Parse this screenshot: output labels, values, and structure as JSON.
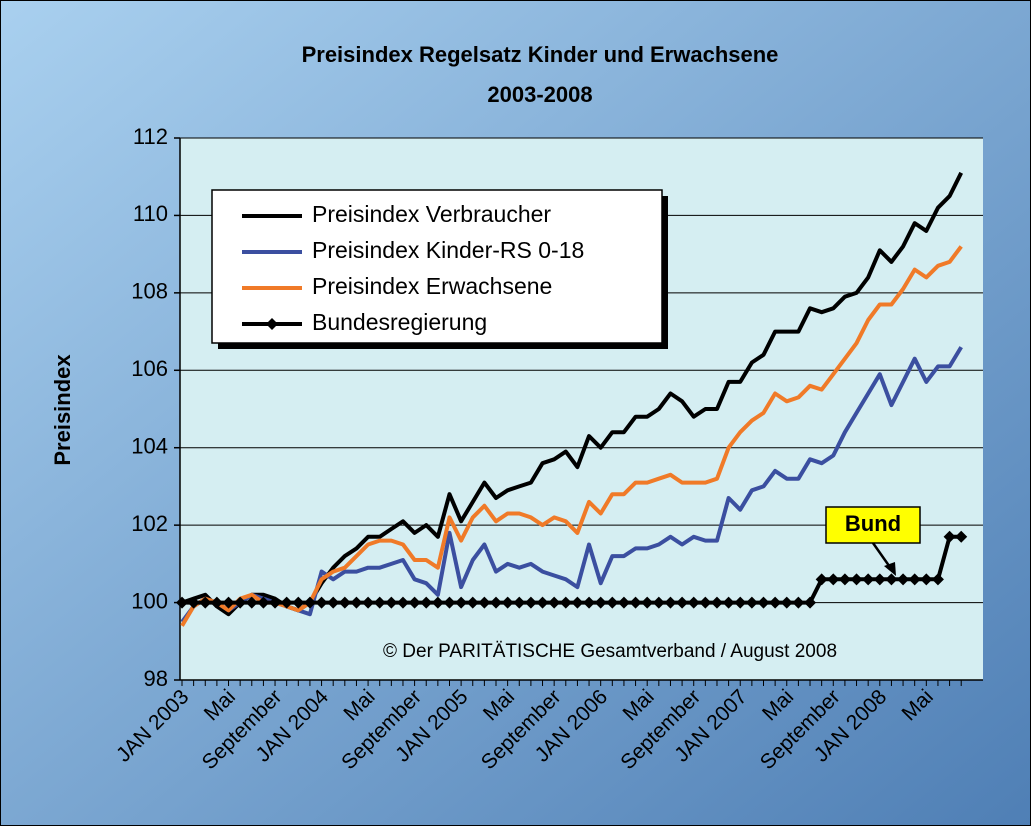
{
  "chart_data": {
    "type": "line",
    "title": "Preisindex Regelsatz Kinder und Erwachsene",
    "subtitle": "2003-2008",
    "y_label": "Preisindex",
    "annotations": [
      "©  Der PARITÄTISCHE Gesamtverband / August 2008",
      "Bund"
    ],
    "legend": "upper-left",
    "grid": true,
    "ylim": [
      98,
      112
    ],
    "yticks": [
      98,
      100,
      102,
      104,
      106,
      108,
      110,
      112
    ],
    "categories": [
      "JAN 2003",
      null,
      null,
      null,
      "Mai",
      null,
      null,
      null,
      "September",
      null,
      null,
      null,
      "JAN 2004",
      null,
      null,
      null,
      "Mai",
      null,
      null,
      null,
      "September",
      null,
      null,
      null,
      "JAN 2005",
      null,
      null,
      null,
      "Mai",
      null,
      null,
      null,
      "September",
      null,
      null,
      null,
      "JAN 2006",
      null,
      null,
      null,
      "Mai",
      null,
      null,
      null,
      "September",
      null,
      null,
      null,
      "JAN 2007",
      null,
      null,
      null,
      "Mai",
      null,
      null,
      null,
      "September",
      null,
      null,
      null,
      "JAN 2008",
      null,
      null,
      null,
      "Mai",
      null,
      null,
      null
    ],
    "series": [
      {
        "name": "Preisindex Verbraucher",
        "color": "#000000",
        "marker": false,
        "values": [
          100,
          100.1,
          100.2,
          99.9,
          99.7,
          100,
          100.2,
          100.2,
          100.1,
          99.9,
          99.8,
          100.0,
          100.5,
          100.9,
          101.2,
          101.4,
          101.7,
          101.7,
          101.9,
          102.1,
          101.8,
          102.0,
          101.7,
          102.8,
          102.1,
          102.6,
          103.1,
          102.7,
          102.9,
          103.0,
          103.1,
          103.6,
          103.7,
          103.9,
          103.5,
          104.3,
          104.0,
          104.4,
          104.4,
          104.8,
          104.8,
          105.0,
          105.4,
          105.2,
          104.8,
          105.0,
          105.0,
          105.7,
          105.7,
          106.2,
          106.4,
          107.0,
          107.0,
          107.0,
          107.6,
          107.5,
          107.6,
          107.9,
          108.0,
          108.4,
          109.1,
          108.8,
          109.2,
          109.8,
          109.6,
          110.2,
          110.5,
          111.1
        ]
      },
      {
        "name": "Preisindex Kinder-RS 0-18",
        "color": "#3b4fa0",
        "marker": false,
        "values": [
          99.5,
          99.9,
          100.1,
          100.0,
          99.8,
          100.0,
          100.2,
          100.1,
          100.0,
          99.9,
          99.8,
          99.7,
          100.8,
          100.6,
          100.8,
          100.8,
          100.9,
          100.9,
          101.0,
          101.1,
          100.6,
          100.5,
          100.2,
          101.8,
          100.4,
          101.1,
          101.5,
          100.8,
          101.0,
          100.9,
          101.0,
          100.8,
          100.7,
          100.6,
          100.4,
          101.5,
          100.5,
          101.2,
          101.2,
          101.4,
          101.4,
          101.5,
          101.7,
          101.5,
          101.7,
          101.6,
          101.6,
          102.7,
          102.4,
          102.9,
          103.0,
          103.4,
          103.2,
          103.2,
          103.7,
          103.6,
          103.8,
          104.4,
          104.9,
          105.4,
          105.9,
          105.1,
          105.7,
          106.3,
          105.7,
          106.1,
          106.1,
          106.6
        ]
      },
      {
        "name": "Preisindex Erwachsene",
        "color": "#f07a28",
        "marker": false,
        "values": [
          99.4,
          99.9,
          100.1,
          100.0,
          99.8,
          100.1,
          100.2,
          100.0,
          100.0,
          99.9,
          99.8,
          100.0,
          100.6,
          100.8,
          100.9,
          101.2,
          101.5,
          101.6,
          101.6,
          101.5,
          101.1,
          101.1,
          100.9,
          102.2,
          101.6,
          102.2,
          102.5,
          102.1,
          102.3,
          102.3,
          102.2,
          102.0,
          102.2,
          102.1,
          101.8,
          102.6,
          102.3,
          102.8,
          102.8,
          103.1,
          103.1,
          103.2,
          103.3,
          103.1,
          103.1,
          103.1,
          103.2,
          104.0,
          104.4,
          104.7,
          104.9,
          105.4,
          105.2,
          105.3,
          105.6,
          105.5,
          105.9,
          106.3,
          106.7,
          107.3,
          107.7,
          107.7,
          108.1,
          108.6,
          108.4,
          108.7,
          108.8,
          109.2
        ]
      },
      {
        "name": "Bundesregierung",
        "color": "#000000",
        "marker": true,
        "values": [
          100,
          100,
          100,
          100,
          100,
          100,
          100,
          100,
          100,
          100,
          100,
          100,
          100,
          100,
          100,
          100,
          100,
          100,
          100,
          100,
          100,
          100,
          100,
          100,
          100,
          100,
          100,
          100,
          100,
          100,
          100,
          100,
          100,
          100,
          100,
          100,
          100,
          100,
          100,
          100,
          100,
          100,
          100,
          100,
          100,
          100,
          100,
          100,
          100,
          100,
          100,
          100,
          100,
          100,
          100,
          100.6,
          100.6,
          100.6,
          100.6,
          100.6,
          100.6,
          100.6,
          100.6,
          100.6,
          100.6,
          100.6,
          101.7,
          101.7
        ]
      }
    ]
  }
}
